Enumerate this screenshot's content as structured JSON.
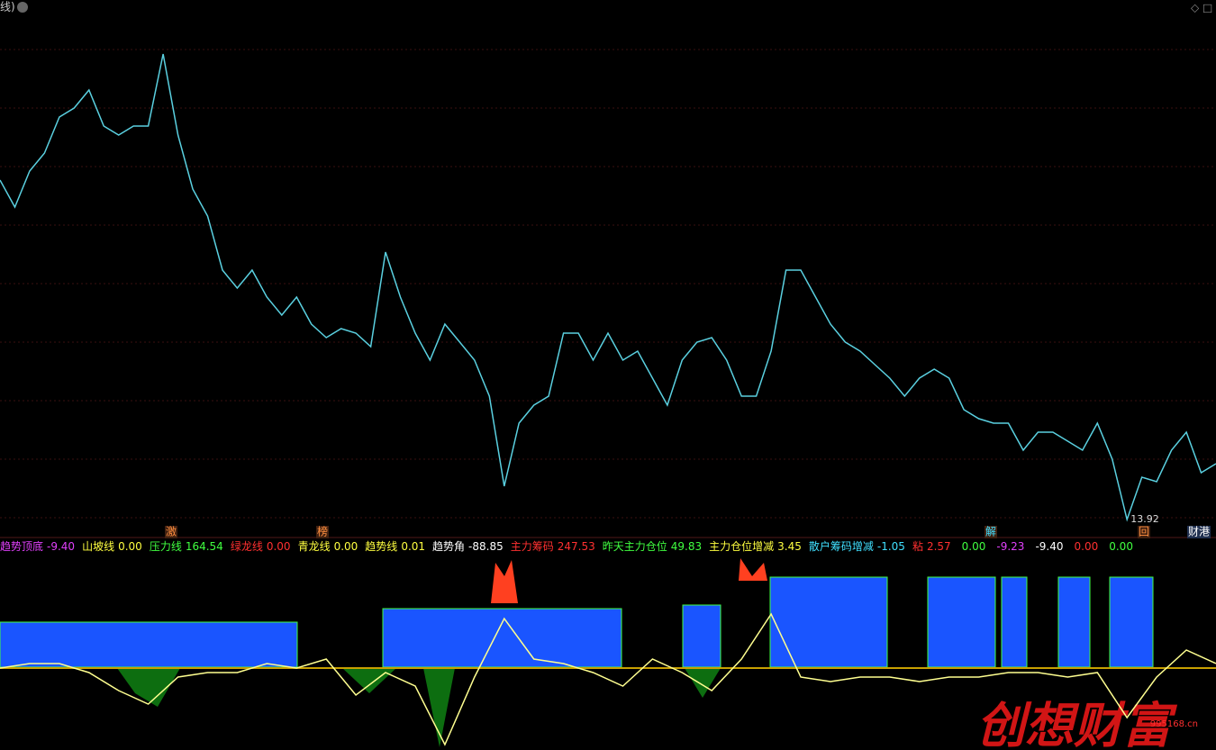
{
  "header": {
    "title": "线)"
  },
  "price_chart": {
    "type": "line",
    "color": "#5ad0e0",
    "values": [
      25.23,
      24.33,
      25.53,
      26.13,
      27.33,
      27.63,
      28.23,
      27.03,
      26.73,
      27.03,
      27.03,
      29.43,
      26.73,
      24.93,
      24.03,
      22.23,
      21.63,
      22.23,
      21.33,
      20.73,
      21.33,
      20.43,
      19.98,
      20.28,
      20.13,
      19.68,
      22.83,
      21.33,
      20.13,
      19.23,
      20.43,
      19.83,
      19.23,
      18.03,
      15.03,
      17.13,
      17.73,
      18.03,
      20.13,
      20.13,
      19.23,
      20.13,
      19.23,
      19.53,
      18.63,
      17.73,
      19.23,
      19.83,
      19.98,
      19.23,
      18.03,
      18.03,
      19.53,
      22.23,
      22.23,
      21.33,
      20.43,
      19.83,
      19.53,
      19.08,
      18.63,
      18.03,
      18.63,
      18.93,
      18.63,
      17.58,
      17.28,
      17.13,
      17.13,
      16.23,
      16.83,
      16.83,
      16.53,
      16.23,
      17.13,
      15.93,
      13.92,
      15.33,
      15.18,
      16.23,
      16.83,
      15.48,
      15.78
    ],
    "ylim": [
      13.92,
      29.88
    ],
    "low_label": "13.92"
  },
  "markers": [
    {
      "text": "激"
    },
    {
      "text": "榜"
    },
    {
      "text": "解"
    },
    {
      "text": "回"
    },
    {
      "text": "财港"
    }
  ],
  "legend": {
    "items": [
      {
        "name": "趋势顶底",
        "value": "-9.40",
        "color": "#e040fb"
      },
      {
        "name": "山坡线",
        "value": "0.00",
        "color": "#ffff40"
      },
      {
        "name": "压力线",
        "value": "164.54",
        "color": "#40ff40"
      },
      {
        "name": "绿龙线",
        "value": "0.00",
        "color": "#ff3030"
      },
      {
        "name": "青龙线",
        "value": "0.00",
        "color": "#ffff40"
      },
      {
        "name": "趋势线",
        "value": "0.01",
        "color": "#ffff40"
      },
      {
        "name": "趋势角",
        "value": "-88.85",
        "color": "#ffffff"
      },
      {
        "name": "主力筹码",
        "value": "247.53",
        "color": "#ff3030"
      },
      {
        "name": "昨天主力仓位",
        "value": "49.83",
        "color": "#40ff40"
      },
      {
        "name": "主力仓位增减",
        "value": "3.45",
        "color": "#ffff40"
      },
      {
        "name": "散户筹码增减",
        "value": "-1.05",
        "color": "#40e0ff"
      },
      {
        "name": "粘",
        "value": "2.57",
        "color": "#ff3030"
      },
      {
        "name": "",
        "value": "0.00",
        "color": "#40ff40"
      },
      {
        "name": "",
        "value": "-9.23",
        "color": "#e040fb"
      },
      {
        "name": "",
        "value": "-9.40",
        "color": "#ffffff"
      },
      {
        "name": "",
        "value": "0.00",
        "color": "#ff3030"
      },
      {
        "name": "",
        "value": "0.00",
        "color": "#40ff40"
      }
    ]
  },
  "indicator": {
    "type": "line",
    "color": "#ffff90",
    "values": [
      0,
      5,
      5,
      -5,
      -25,
      -40,
      -10,
      -5,
      -5,
      5,
      0,
      10,
      -30,
      -5,
      -20,
      -85,
      -10,
      55,
      10,
      5,
      -5,
      -20,
      10,
      -5,
      -25,
      10,
      60,
      -10,
      -15,
      -10,
      -10,
      -15,
      -10,
      -10,
      -5,
      -5,
      -10,
      -5,
      -55,
      -10,
      20,
      5
    ],
    "ylim": [
      -91,
      127
    ]
  },
  "watermark": {
    "text": "创想财富",
    "url": "995168.cn"
  }
}
